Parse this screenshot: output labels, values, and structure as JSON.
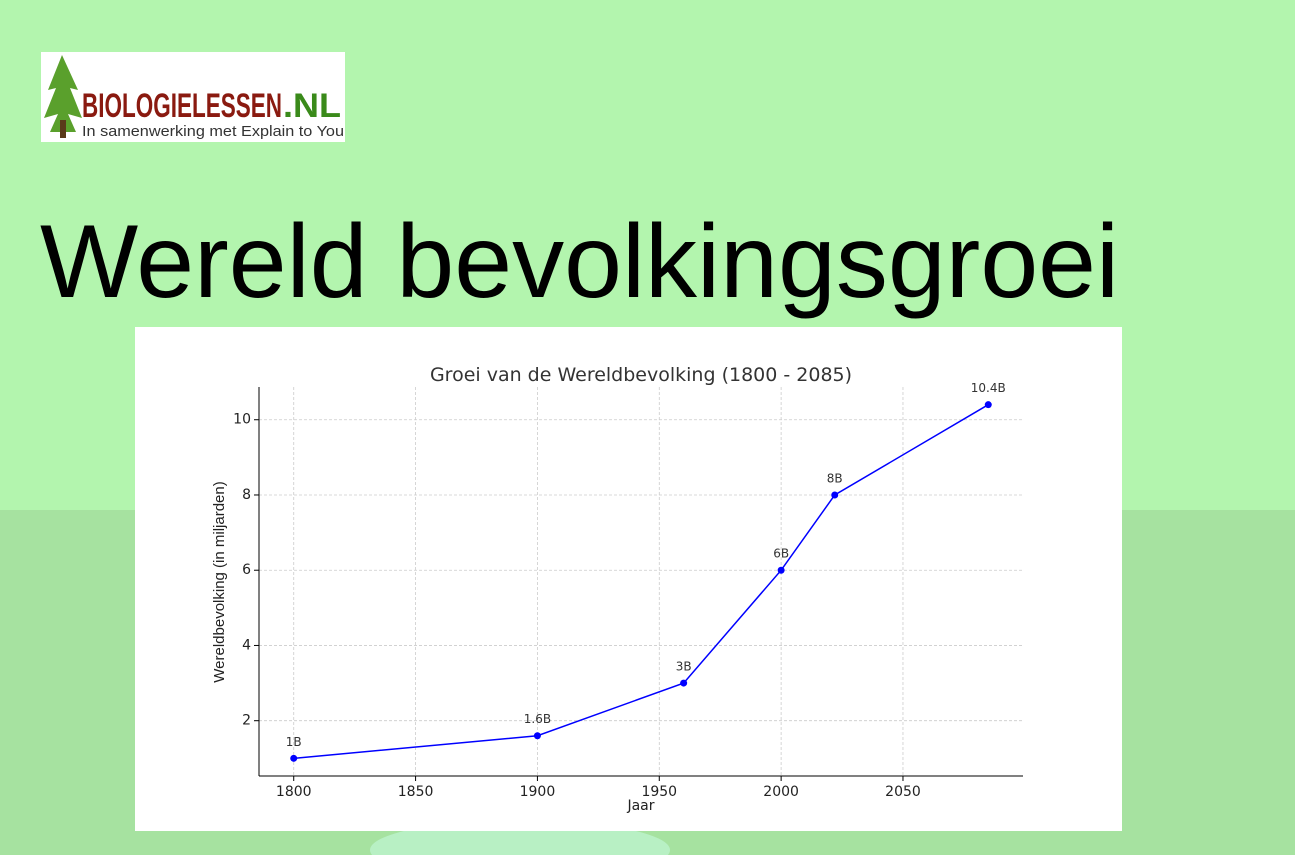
{
  "slide": {
    "title": "Wereld bevolkingsgroei",
    "logo": {
      "name": "BIOLOGIELESSEN",
      "suffix": ".NL",
      "tagline": "In samenwerking met Explain to You"
    }
  },
  "chart_data": {
    "type": "line",
    "title": "Groei van de Wereldbevolking (1800 - 2085)",
    "x_label": "Jaar",
    "y_label": "Wereldbevolking (in miljarden)",
    "x": [
      1800,
      1900,
      1960,
      2000,
      2022,
      2085
    ],
    "values": [
      1,
      1.6,
      3,
      6,
      8,
      10.4
    ],
    "value_labels": [
      "1B",
      "1.6B",
      "3B",
      "6B",
      "8B",
      "10.4B"
    ],
    "color": "#0000ff",
    "xlim": [
      1785.75,
      2099.25
    ],
    "xticks": [
      1800,
      1850,
      1900,
      1950,
      2000,
      2050
    ],
    "ylim": [
      0.53,
      10.87
    ],
    "yticks": [
      2,
      4,
      6,
      8,
      10
    ],
    "grid": true
  }
}
